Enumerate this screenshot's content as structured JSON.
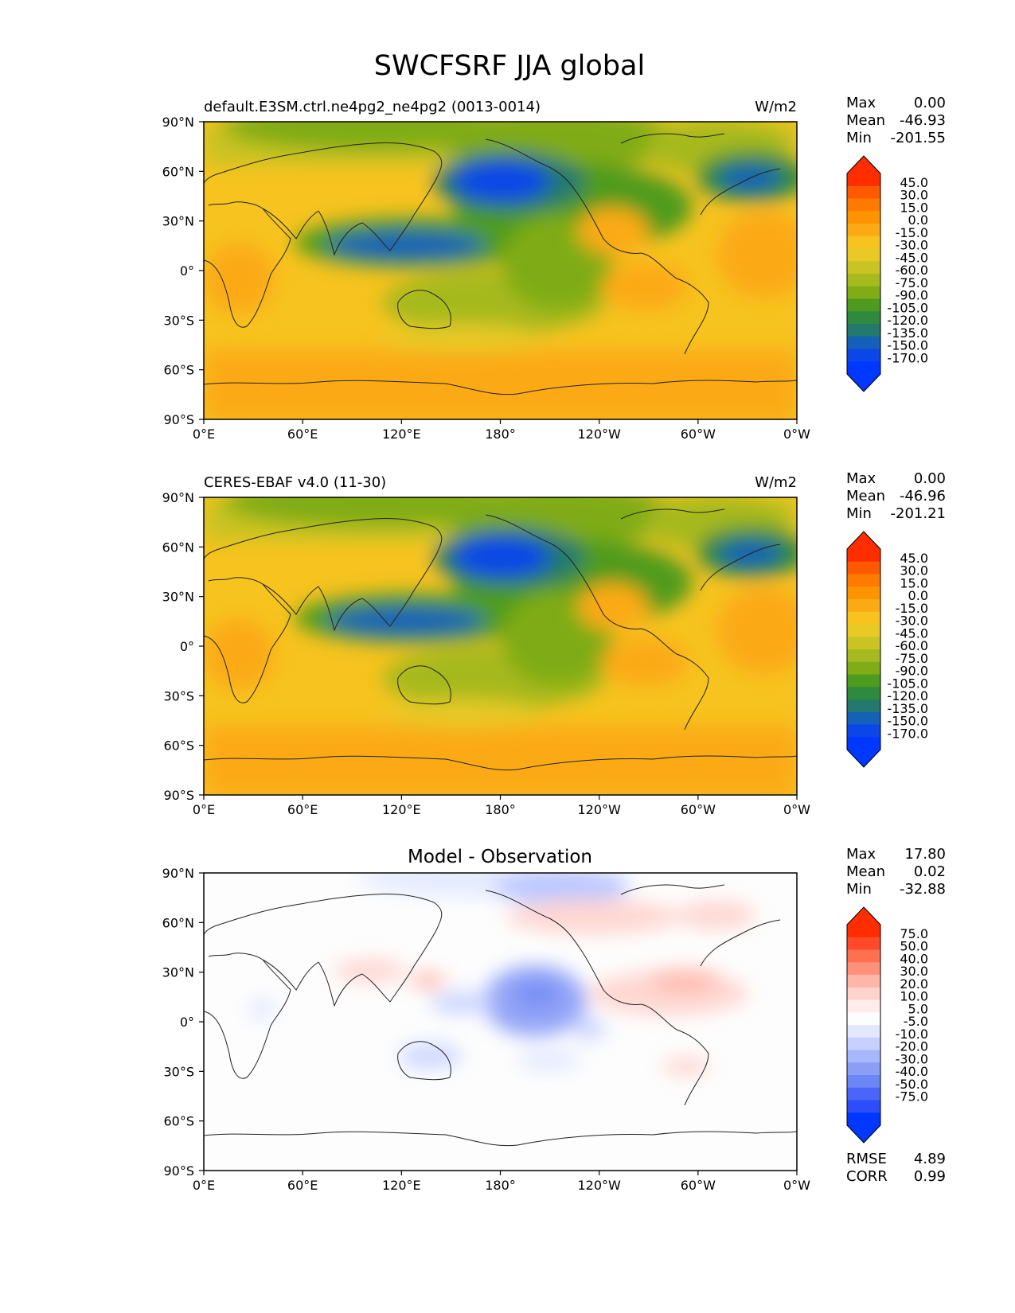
{
  "title": "SWCFSRF JJA global",
  "axes": {
    "x_ticks": [
      "0°E",
      "60°E",
      "120°E",
      "180°",
      "120°W",
      "60°W",
      "0°W"
    ],
    "y_ticks": [
      "90°N",
      "60°N",
      "30°N",
      "0°",
      "30°S",
      "60°S",
      "90°S"
    ]
  },
  "chart_data": [
    {
      "type": "heatmap",
      "panel": "test",
      "left_title": "default.E3SM.ctrl.ne4pg2_ne4pg2 (0013-0014)",
      "right_title": "W/m2",
      "xlim": [
        0,
        360
      ],
      "ylim": [
        -90,
        90
      ],
      "stats": {
        "max_label": "Max",
        "max": "0.00",
        "mean_label": "Mean",
        "mean": "-46.93",
        "min_label": "Min",
        "min": "-201.55"
      },
      "colorbar_levels": [
        "45.0",
        "30.0",
        "15.0",
        "0.0",
        "-15.0",
        "-30.0",
        "-45.0",
        "-60.0",
        "-75.0",
        "-90.0",
        "-105.0",
        "-120.0",
        "-135.0",
        "-150.0",
        "-170.0"
      ]
    },
    {
      "type": "heatmap",
      "panel": "reference",
      "left_title": "CERES-EBAF v4.0 (11-30)",
      "right_title": "W/m2",
      "xlim": [
        0,
        360
      ],
      "ylim": [
        -90,
        90
      ],
      "stats": {
        "max_label": "Max",
        "max": "0.00",
        "mean_label": "Mean",
        "mean": "-46.96",
        "min_label": "Min",
        "min": "-201.21"
      },
      "colorbar_levels": [
        "45.0",
        "30.0",
        "15.0",
        "0.0",
        "-15.0",
        "-30.0",
        "-45.0",
        "-60.0",
        "-75.0",
        "-90.0",
        "-105.0",
        "-120.0",
        "-135.0",
        "-150.0",
        "-170.0"
      ]
    },
    {
      "type": "heatmap",
      "panel": "difference",
      "center_title": "Model - Observation",
      "xlim": [
        0,
        360
      ],
      "ylim": [
        -90,
        90
      ],
      "stats": {
        "max_label": "Max",
        "max": "17.80",
        "mean_label": "Mean",
        "mean": "0.02",
        "min_label": "Min",
        "min": "-32.88"
      },
      "extra_stats": {
        "rmse_label": "RMSE",
        "rmse": "4.89",
        "corr_label": "CORR",
        "corr": "0.99"
      },
      "colorbar_levels": [
        "75.0",
        "50.0",
        "40.0",
        "30.0",
        "20.0",
        "10.0",
        "5.0",
        "-5.0",
        "-10.0",
        "-20.0",
        "-30.0",
        "-40.0",
        "-50.0",
        "-75.0"
      ]
    }
  ],
  "colors": {
    "main_ramp": [
      "#ff2d00",
      "#ff5a00",
      "#ff7a00",
      "#fc9400",
      "#fbaa16",
      "#f7c31f",
      "#e8c925",
      "#c9c324",
      "#a6b91f",
      "#7fac17",
      "#4f9b1f",
      "#2f8a3e",
      "#23796e",
      "#1560b8",
      "#0a46e8",
      "#0038ff"
    ],
    "diff_ramp": [
      "#ff2d00",
      "#ff4a2a",
      "#ff7050",
      "#ff917c",
      "#ffb5a8",
      "#ffd3cd",
      "#ffeceb",
      "#fdfdfd",
      "#e2e8ff",
      "#c6d1ff",
      "#a8b8ff",
      "#8a9df7",
      "#6d86f5",
      "#4a66f7",
      "#2d4cfa",
      "#0038ff"
    ]
  }
}
